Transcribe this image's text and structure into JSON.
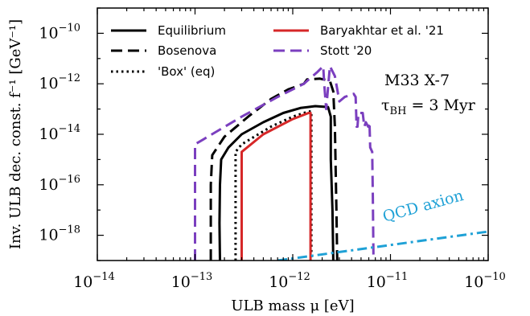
{
  "chart_data": {
    "type": "line",
    "xscale": "log",
    "yscale": "log",
    "xlabel": "ULB mass μ [eV]",
    "ylabel": "Inv. ULB dec. const. f⁻¹ [GeV⁻¹]",
    "xlim": [
      1e-14,
      1e-10
    ],
    "ylim": [
      1e-19,
      1e-09
    ],
    "xticks": [
      {
        "value": 1e-14,
        "base": "10",
        "exp": "−14"
      },
      {
        "value": 1e-13,
        "base": "10",
        "exp": "−13"
      },
      {
        "value": 1e-12,
        "base": "10",
        "exp": "−12"
      },
      {
        "value": 1e-11,
        "base": "10",
        "exp": "−11"
      },
      {
        "value": 1e-10,
        "base": "10",
        "exp": "−10"
      }
    ],
    "yticks": [
      {
        "value": 1e-10,
        "base": "10",
        "exp": "−10"
      },
      {
        "value": 1e-12,
        "base": "10",
        "exp": "−12"
      },
      {
        "value": 1e-14,
        "base": "10",
        "exp": "−14"
      },
      {
        "value": 1e-16,
        "base": "10",
        "exp": "−16"
      },
      {
        "value": 1e-18,
        "base": "10",
        "exp": "−18"
      }
    ],
    "series": [
      {
        "name": "Equilibrium",
        "color": "#000000",
        "dash": "solid",
        "points": [
          [
            1.8e-13,
            1e-19
          ],
          [
            1.78e-13,
            3e-18
          ],
          [
            1.8e-13,
            1e-16
          ],
          [
            1.85e-13,
            1e-15
          ],
          [
            2.2e-13,
            3e-15
          ],
          [
            3e-13,
            1e-14
          ],
          [
            5e-13,
            3e-14
          ],
          [
            8e-13,
            7e-14
          ],
          [
            1.2e-12,
            1.1e-13
          ],
          [
            1.7e-12,
            1.3e-13
          ],
          [
            2.3e-12,
            1.2e-13
          ],
          [
            2.45e-12,
            5e-14
          ],
          [
            2.45e-12,
            1e-15
          ],
          [
            2.55e-12,
            1e-17
          ],
          [
            2.6e-12,
            1e-19
          ]
        ]
      },
      {
        "name": "Bosenova",
        "color": "#000000",
        "dash": "dashed",
        "points": [
          [
            1.45e-13,
            1e-19
          ],
          [
            1.45e-13,
            1e-16
          ],
          [
            1.5e-13,
            1.5e-15
          ],
          [
            2e-13,
            8e-15
          ],
          [
            3.5e-13,
            5e-14
          ],
          [
            6e-13,
            2.5e-13
          ],
          [
            9e-13,
            6e-13
          ],
          [
            1.3e-12,
            1e-12
          ],
          [
            1.4e-12,
            1.5e-12
          ],
          [
            1.9e-12,
            1.6e-12
          ],
          [
            2.4e-12,
            1.3e-12
          ],
          [
            2.6e-12,
            5e-13
          ],
          [
            2.7e-12,
            2e-14
          ],
          [
            2.8e-12,
            1e-17
          ],
          [
            2.85e-12,
            1e-19
          ]
        ]
      },
      {
        "name": "'Box' (eq)",
        "color": "#000000",
        "dash": "dotted",
        "points": [
          [
            2.6e-13,
            1e-19
          ],
          [
            2.6e-13,
            2e-15
          ],
          [
            3e-13,
            4e-15
          ],
          [
            6e-13,
            2e-14
          ],
          [
            1e-12,
            5e-14
          ],
          [
            1.45e-12,
            8e-14
          ],
          [
            1.55e-12,
            8e-14
          ],
          [
            1.55e-12,
            1e-19
          ]
        ]
      },
      {
        "name": "Baryakhtar et al. '21",
        "color": "#d62728",
        "dash": "solid",
        "points": [
          [
            3e-13,
            1e-19
          ],
          [
            3e-13,
            2e-15
          ],
          [
            5e-13,
            1e-14
          ],
          [
            1e-12,
            4e-14
          ],
          [
            1.45e-12,
            7e-14
          ],
          [
            1.52e-12,
            7e-14
          ],
          [
            1.52e-12,
            1e-19
          ]
        ]
      },
      {
        "name": "Stott '20",
        "color": "#7b3fbf",
        "dash": "dashed",
        "points": [
          [
            1e-13,
            1e-19
          ],
          [
            1e-13,
            4e-15
          ],
          [
            3e-13,
            5e-14
          ],
          [
            7e-13,
            3e-13
          ],
          [
            1.3e-12,
            1e-12
          ],
          [
            1.8e-12,
            3e-12
          ],
          [
            2.05e-12,
            5e-12
          ],
          [
            2.1e-12,
            1e-12
          ],
          [
            2.2e-12,
            1e-13
          ],
          [
            2.4e-12,
            5e-12
          ],
          [
            2.7e-12,
            2e-12
          ],
          [
            3e-12,
            2e-13
          ],
          [
            3.4e-12,
            3e-13
          ],
          [
            4.2e-12,
            4e-13
          ],
          [
            4.4e-12,
            3e-13
          ],
          [
            4.5e-12,
            2e-14
          ],
          [
            4.6e-12,
            2e-14
          ],
          [
            4.7e-12,
            7e-14
          ],
          [
            5.2e-12,
            7e-14
          ],
          [
            5.4e-12,
            2e-14
          ],
          [
            5.6e-12,
            3e-14
          ],
          [
            5.9e-12,
            2e-14
          ],
          [
            6.1e-12,
            3e-14
          ],
          [
            6.2e-12,
            3e-15
          ],
          [
            6.5e-12,
            2e-15
          ],
          [
            6.6e-12,
            3e-17
          ],
          [
            6.7e-12,
            1e-19
          ]
        ]
      },
      {
        "name": "QCD axion",
        "color": "#1fa1d6",
        "dash": "dashdot",
        "points": [
          [
            7e-13,
            1e-19
          ],
          [
            1e-10,
            1.4e-18
          ]
        ]
      }
    ],
    "legend": {
      "placement": "top",
      "entries": [
        "Equilibrium",
        "Bosenova",
        "'Box' (eq)",
        "Baryakhtar et al. '21",
        "Stott '20"
      ]
    },
    "annotations": {
      "source": "M33 X-7",
      "tau_main": "τ",
      "tau_sub": "BH",
      "tau_rest": " = 3 Myr",
      "qcd_label": "QCD axion"
    }
  }
}
